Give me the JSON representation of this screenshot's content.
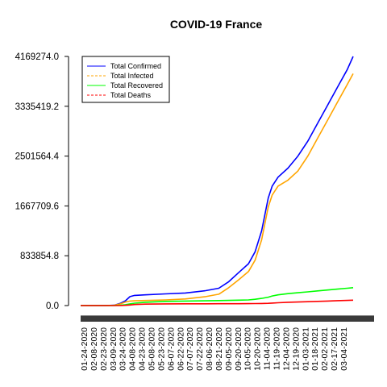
{
  "chart_data": {
    "type": "line",
    "title": "COVID-19 France",
    "xlabel": "",
    "ylabel": "",
    "ylim": [
      0,
      4169274.0
    ],
    "y_ticks": [
      "0.0",
      "833854.8",
      "1667709.6",
      "2501564.4",
      "3335419.2",
      "4169274.0"
    ],
    "y_tick_values": [
      0,
      833854.8,
      1667709.6,
      2501564.4,
      3335419.2,
      4169274.0
    ],
    "x_tick_labels": [
      "01-24-2020",
      "02-08-2020",
      "02-23-2020",
      "03-09-2020",
      "03-24-2020",
      "04-08-2020",
      "04-23-2020",
      "05-08-2020",
      "05-23-2020",
      "06-07-2020",
      "06-22-2020",
      "07-07-2020",
      "07-22-2020",
      "08-06-2020",
      "08-21-2020",
      "09-05-2020",
      "09-20-2020",
      "10-05-2020",
      "10-20-2020",
      "11-04-2020",
      "11-19-2020",
      "12-04-2020",
      "12-19-2020",
      "01-03-2021",
      "01-18-2021",
      "02-02-2021",
      "02-17-2021",
      "03-04-2021"
    ],
    "legend_position": "top-left",
    "grid": false,
    "x": [
      "2020-01-24",
      "2020-03-01",
      "2020-03-15",
      "2020-03-25",
      "2020-04-01",
      "2020-04-08",
      "2020-04-15",
      "2020-05-01",
      "2020-06-01",
      "2020-07-01",
      "2020-08-01",
      "2020-08-21",
      "2020-09-05",
      "2020-09-20",
      "2020-10-05",
      "2020-10-15",
      "2020-10-25",
      "2020-11-04",
      "2020-11-10",
      "2020-11-19",
      "2020-12-04",
      "2020-12-19",
      "2021-01-03",
      "2021-01-18",
      "2021-02-02",
      "2021-02-17",
      "2021-03-04",
      "2021-03-13"
    ],
    "series": [
      {
        "name": "Total Confirmed",
        "color": "#0000ff",
        "dash": "solid",
        "values": [
          0,
          100,
          5000,
          40000,
          80000,
          150000,
          170000,
          180000,
          195000,
          210000,
          250000,
          290000,
          400000,
          550000,
          700000,
          900000,
          1250000,
          1800000,
          2000000,
          2150000,
          2300000,
          2500000,
          2750000,
          3050000,
          3350000,
          3650000,
          3950000,
          4169274
        ]
      },
      {
        "name": "Total Infected",
        "color": "#ffa500",
        "dash": "dashed",
        "values": [
          0,
          90,
          4500,
          30000,
          60000,
          75000,
          80000,
          85000,
          95000,
          110000,
          150000,
          190000,
          300000,
          430000,
          570000,
          760000,
          1100000,
          1650000,
          1850000,
          2000000,
          2100000,
          2250000,
          2500000,
          2800000,
          3100000,
          3400000,
          3700000,
          3880000
        ]
      },
      {
        "name": "Total Recovered",
        "color": "#00ff00",
        "dash": "solid",
        "values": [
          0,
          10,
          500,
          5000,
          15000,
          28000,
          40000,
          55000,
          70000,
          75000,
          80000,
          83000,
          86000,
          90000,
          95000,
          105000,
          120000,
          140000,
          160000,
          180000,
          200000,
          215000,
          230000,
          245000,
          260000,
          275000,
          290000,
          300000
        ]
      },
      {
        "name": "Total Deaths",
        "color": "#ff0000",
        "dash": "dashed",
        "values": [
          0,
          2,
          90,
          1300,
          3500,
          10000,
          17000,
          24000,
          28000,
          29800,
          30200,
          30500,
          31000,
          31500,
          32000,
          33500,
          35000,
          38000,
          42000,
          47000,
          55000,
          60000,
          65000,
          70000,
          76000,
          82000,
          87000,
          90000
        ]
      }
    ]
  }
}
